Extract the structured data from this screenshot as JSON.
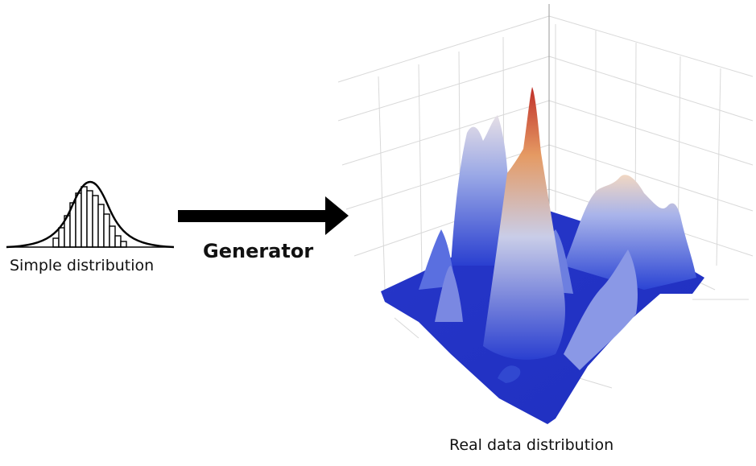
{
  "left": {
    "caption": "Simple distribution"
  },
  "arrow": {
    "label": "Generator"
  },
  "right": {
    "caption": "Real data distribution"
  },
  "colors": {
    "low": "#2a40d0",
    "mid": "#b9c4ec",
    "high": "#c0302a",
    "ink": "#000000"
  }
}
